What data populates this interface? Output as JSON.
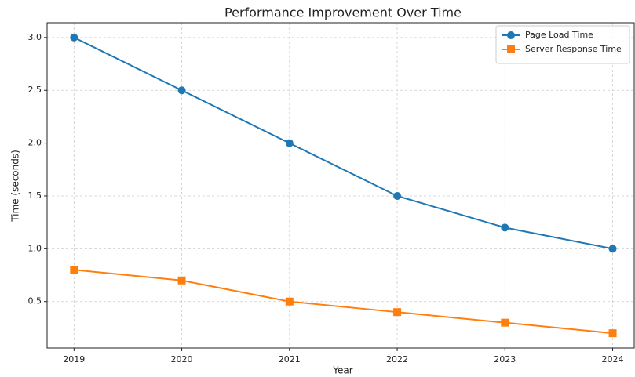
{
  "chart_data": {
    "type": "line",
    "title": "Performance Improvement Over Time",
    "xlabel": "Year",
    "ylabel": "Time (seconds)",
    "x": [
      2019,
      2020,
      2021,
      2022,
      2023,
      2024
    ],
    "series": [
      {
        "name": "Page Load Time",
        "color": "#1f77b4",
        "marker": "circle",
        "values": [
          3.0,
          2.5,
          2.0,
          1.5,
          1.2,
          1.0
        ]
      },
      {
        "name": "Server Response Time",
        "color": "#ff7f0e",
        "marker": "square",
        "values": [
          0.8,
          0.7,
          0.5,
          0.4,
          0.3,
          0.2
        ]
      }
    ],
    "xlim": [
      2018.75,
      2024.2
    ],
    "xticks": [
      2019,
      2020,
      2021,
      2022,
      2023,
      2024
    ],
    "ylim": [
      0.06,
      3.14
    ],
    "yticks": [
      0.5,
      {
        "value": 1,
        "label": "1.0"
      },
      1.5,
      {
        "value": 2,
        "label": "2.0"
      },
      2.5,
      {
        "value": 3,
        "label": "3.0"
      }
    ],
    "grid": true,
    "legend": "upper right"
  }
}
